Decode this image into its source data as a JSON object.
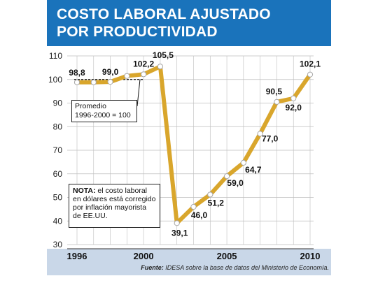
{
  "header": {
    "title_line1": "COSTO LABORAL AJUSTADO",
    "title_line2": "POR PRODUCTIVIDAD"
  },
  "colors": {
    "header_bg": "#1a73bb",
    "line": "#d9a62c",
    "bottom_band": "#c9d7e8",
    "grid": "#bdbdbd"
  },
  "chart_data": {
    "type": "line",
    "title": "COSTO LABORAL AJUSTADO POR PRODUCTIVIDAD",
    "x": [
      1996,
      1997,
      1998,
      1999,
      2000,
      2001,
      2002,
      2003,
      2004,
      2005,
      2006,
      2007,
      2008,
      2009,
      2010
    ],
    "values": [
      98.8,
      98.8,
      99.0,
      101.5,
      102.2,
      105.5,
      39.1,
      46.0,
      51.2,
      59.0,
      64.7,
      77.0,
      90.5,
      92.0,
      102.1
    ],
    "point_labels": [
      "98,8",
      "",
      "99,0",
      "",
      "102,2",
      "105,5",
      "39,1",
      "46,0",
      "51,2",
      "59,0",
      "64,7",
      "77,0",
      "90,5",
      "92,0",
      "102,1"
    ],
    "ylim": [
      30,
      110
    ],
    "yticks": [
      "30",
      "40",
      "50",
      "60",
      "70",
      "80",
      "90",
      "100",
      "110"
    ],
    "xticks": [
      "1996",
      "2000",
      "2005",
      "2010"
    ],
    "average": {
      "value": 100,
      "x_range": [
        1996,
        2000
      ]
    },
    "grid": true
  },
  "annotations": {
    "average_line1": "Promedio",
    "average_line2": "1996-2000 = 100",
    "note_bold": "NOTA:",
    "note_text1": " el costo laboral",
    "note_text2": "en dólares está corregido",
    "note_text3": "por inflación mayorista",
    "note_text4": "de EE.UU."
  },
  "source": {
    "label": "Fuente:",
    "text": " IDESA sobre la base de datos del Ministerio de Economía."
  }
}
